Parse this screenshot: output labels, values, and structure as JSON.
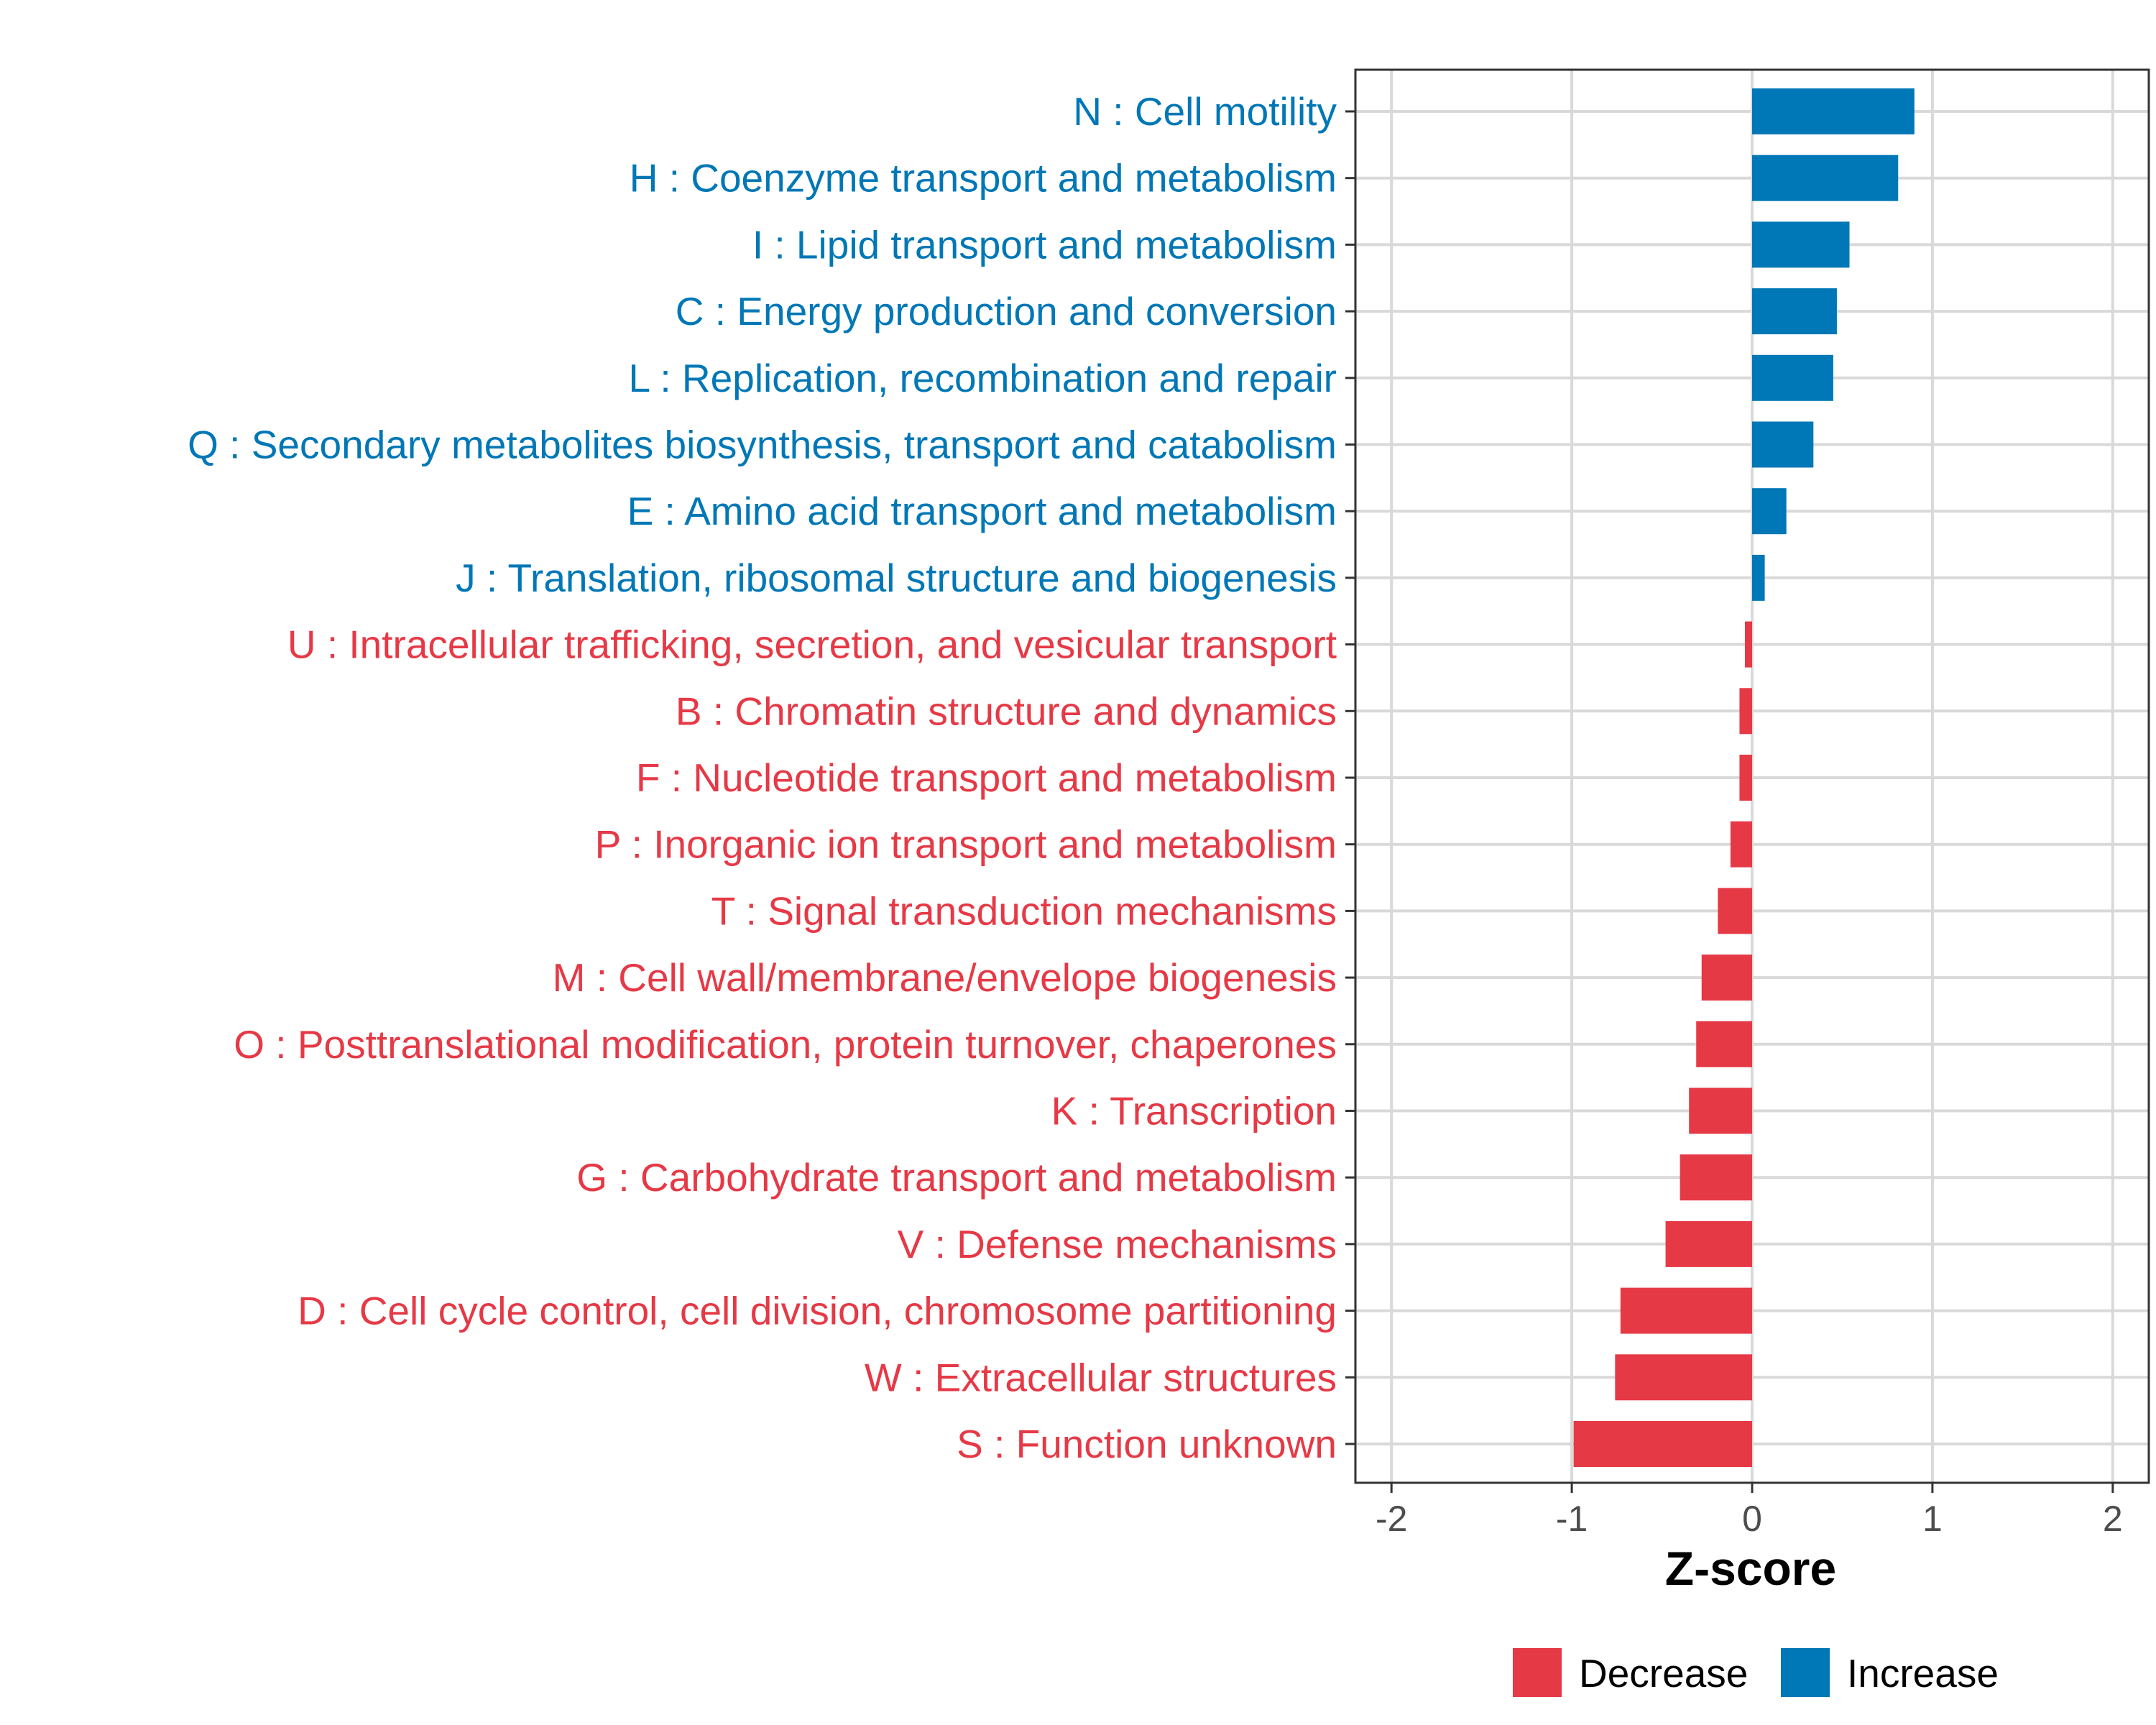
{
  "chart_data": {
    "type": "bar",
    "orientation": "horizontal",
    "xlabel": "Z-score",
    "ylabel": "",
    "xlim": [
      -2.2,
      2.2
    ],
    "x_ticks": [
      -2,
      -1,
      0,
      1,
      2
    ],
    "x_tick_labels": [
      "-2",
      "-1",
      "0",
      "1",
      "2"
    ],
    "grid": true,
    "categories": [
      "N : Cell motility",
      "H : Coenzyme transport and metabolism",
      "I : Lipid transport and metabolism",
      "C : Energy production and conversion",
      "L : Replication, recombination and repair",
      "Q : Secondary metabolites biosynthesis, transport and catabolism",
      "E : Amino acid transport and metabolism",
      "J : Translation, ribosomal structure and biogenesis",
      "U : Intracellular trafficking, secretion, and vesicular transport",
      "B : Chromatin structure and dynamics",
      "F : Nucleotide transport and metabolism",
      "P : Inorganic ion transport and metabolism",
      "T : Signal transduction mechanisms",
      "M : Cell wall/membrane/envelope biogenesis",
      "O : Posttranslational modification, protein turnover, chaperones",
      "K : Transcription",
      "G : Carbohydrate transport and metabolism",
      "V : Defense mechanisms",
      "D : Cell cycle control, cell division, chromosome partitioning",
      "W : Extracellular structures",
      "S : Function unknown"
    ],
    "values": [
      0.9,
      0.81,
      0.54,
      0.47,
      0.45,
      0.34,
      0.19,
      0.07,
      -0.04,
      -0.07,
      -0.07,
      -0.12,
      -0.19,
      -0.28,
      -0.31,
      -0.35,
      -0.4,
      -0.48,
      -0.73,
      -0.76,
      -0.99
    ],
    "groups": [
      "Increase",
      "Increase",
      "Increase",
      "Increase",
      "Increase",
      "Increase",
      "Increase",
      "Increase",
      "Decrease",
      "Decrease",
      "Decrease",
      "Decrease",
      "Decrease",
      "Decrease",
      "Decrease",
      "Decrease",
      "Decrease",
      "Decrease",
      "Decrease",
      "Decrease",
      "Decrease"
    ],
    "legend": {
      "position": "bottom",
      "items": [
        {
          "label": "Decrease",
          "color": "#E63946"
        },
        {
          "label": "Increase",
          "color": "#0077B6"
        }
      ]
    }
  }
}
